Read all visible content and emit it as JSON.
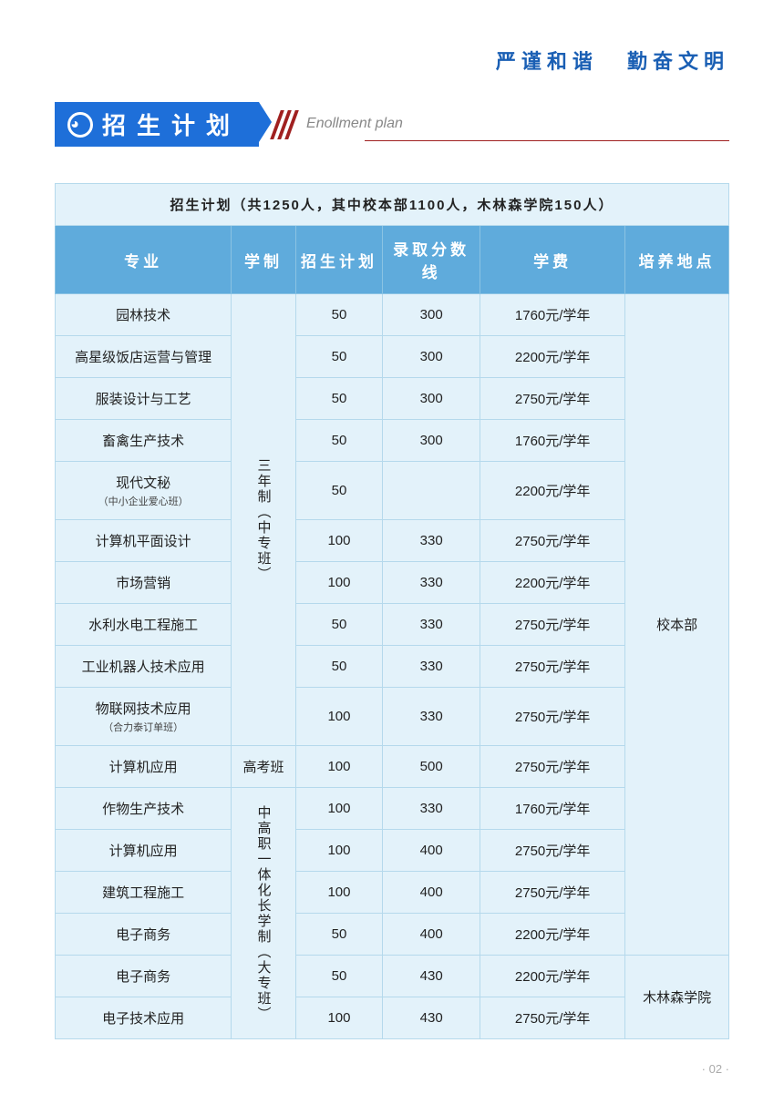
{
  "motto": {
    "p1": "严谨和谐",
    "p2": "勤奋文明"
  },
  "header": {
    "badge_text": "招生计划",
    "subtitle": "Enollment plan"
  },
  "table": {
    "title": "招生计划（共1250人，其中校本部1100人，木林森学院150人）",
    "columns": [
      "专业",
      "学制",
      "招生计划",
      "录取分数线",
      "学费",
      "培养地点"
    ],
    "system_groups": {
      "g1": "三年制（中专班）",
      "g2": "高考班",
      "g3": "中高职一体化长学制（大专班）"
    },
    "locations": {
      "loc1": "校本部",
      "loc2": "木林森学院"
    },
    "rows": [
      {
        "major": "园林技术",
        "sub": "",
        "plan": "50",
        "score": "300",
        "fee": "1760元/学年"
      },
      {
        "major": "高星级饭店运营与管理",
        "sub": "",
        "plan": "50",
        "score": "300",
        "fee": "2200元/学年"
      },
      {
        "major": "服装设计与工艺",
        "sub": "",
        "plan": "50",
        "score": "300",
        "fee": "2750元/学年"
      },
      {
        "major": "畜禽生产技术",
        "sub": "",
        "plan": "50",
        "score": "300",
        "fee": "1760元/学年"
      },
      {
        "major": "现代文秘",
        "sub": "（中小企业爱心班）",
        "plan": "50",
        "score": "",
        "fee": "2200元/学年"
      },
      {
        "major": "计算机平面设计",
        "sub": "",
        "plan": "100",
        "score": "330",
        "fee": "2750元/学年"
      },
      {
        "major": "市场营销",
        "sub": "",
        "plan": "100",
        "score": "330",
        "fee": "2200元/学年"
      },
      {
        "major": "水利水电工程施工",
        "sub": "",
        "plan": "50",
        "score": "330",
        "fee": "2750元/学年"
      },
      {
        "major": "工业机器人技术应用",
        "sub": "",
        "plan": "50",
        "score": "330",
        "fee": "2750元/学年"
      },
      {
        "major": "物联网技术应用",
        "sub": "（合力泰订单班）",
        "plan": "100",
        "score": "330",
        "fee": "2750元/学年"
      },
      {
        "major": "计算机应用",
        "sub": "",
        "plan": "100",
        "score": "500",
        "fee": "2750元/学年"
      },
      {
        "major": "作物生产技术",
        "sub": "",
        "plan": "100",
        "score": "330",
        "fee": "1760元/学年"
      },
      {
        "major": "计算机应用",
        "sub": "",
        "plan": "100",
        "score": "400",
        "fee": "2750元/学年"
      },
      {
        "major": "建筑工程施工",
        "sub": "",
        "plan": "100",
        "score": "400",
        "fee": "2750元/学年"
      },
      {
        "major": "电子商务",
        "sub": "",
        "plan": "50",
        "score": "400",
        "fee": "2200元/学年"
      },
      {
        "major": "电子商务",
        "sub": "",
        "plan": "50",
        "score": "430",
        "fee": "2200元/学年"
      },
      {
        "major": "电子技术应用",
        "sub": "",
        "plan": "100",
        "score": "430",
        "fee": "2750元/学年"
      }
    ]
  },
  "pagenum": "· 02 ·"
}
